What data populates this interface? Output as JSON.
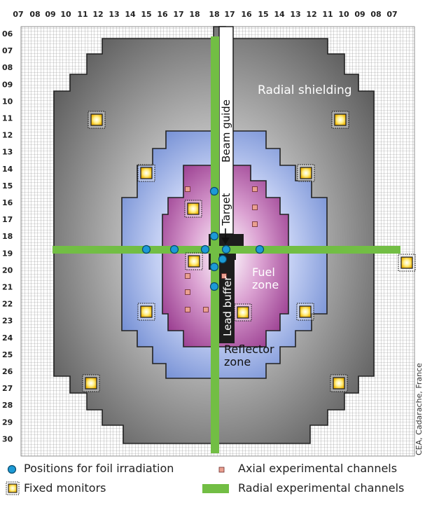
{
  "column_labels": [
    "07",
    "08",
    "09",
    "10",
    "11",
    "12",
    "13",
    "14",
    "15",
    "16",
    "17",
    "18",
    "18",
    "17",
    "16",
    "15",
    "14",
    "13",
    "12",
    "11",
    "10",
    "09",
    "08",
    "07"
  ],
  "row_labels": [
    "06",
    "07",
    "08",
    "09",
    "10",
    "11",
    "12",
    "13",
    "14",
    "15",
    "16",
    "17",
    "18",
    "19",
    "20",
    "21",
    "22",
    "23",
    "24",
    "25",
    "26",
    "27",
    "28",
    "29",
    "30"
  ],
  "labels": {
    "radial_shielding": "Radial shielding",
    "beam_guide": "Beam guide",
    "target": "Target",
    "lead_buffer": "Lead buffer",
    "fuel_zone_line1": "Fuel",
    "fuel_zone_line2": "zone",
    "reflector_zone_line1": "Reflector",
    "reflector_zone_line2": "zone",
    "credit": "CEA, Cadarache, France"
  },
  "legend": {
    "foil_positions": "Positions for foil irradiation",
    "axial_channels": "Axial experimental channels",
    "fixed_monitors": "Fixed monitors",
    "radial_channels": "Radial experimental channels"
  },
  "colors": {
    "shielding": "#6e6e6e",
    "reflector": "#7c95d6",
    "fuel": "#a03e94",
    "lead_buffer": "#1c1c1c",
    "radial_channel": "#72be44",
    "monitor": "#f4c400",
    "foil_marker": "#1c9ad6",
    "axial_channel": "#eaa090"
  }
}
